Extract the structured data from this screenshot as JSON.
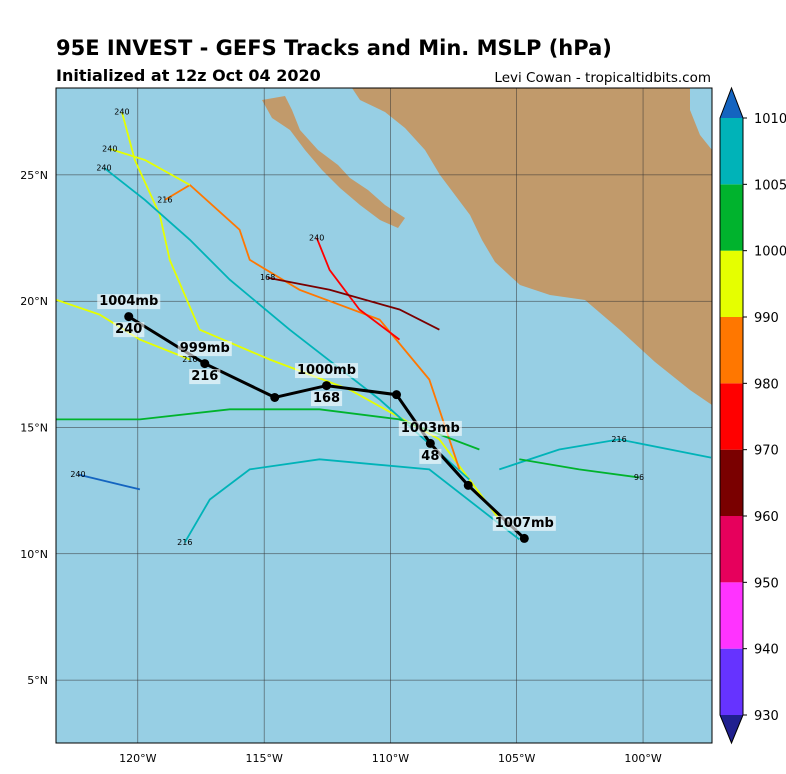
{
  "header": {
    "title": "95E INVEST - GEFS Tracks and Min. MSLP (hPa)",
    "subtitle": "Initialized at 12z Oct 04 2020",
    "credit": "Levi Cowan - tropicaltidbits.com"
  },
  "map": {
    "lon_range": [
      -123.24,
      -97.27
    ],
    "lat_range": [
      2.51,
      28.44
    ],
    "lon_ticks": [
      {
        "value": -120,
        "label": "120°W"
      },
      {
        "value": -115,
        "label": "115°W"
      },
      {
        "value": -110,
        "label": "110°W"
      },
      {
        "value": -105,
        "label": "105°W"
      },
      {
        "value": -100,
        "label": "100°W"
      }
    ],
    "lat_ticks": [
      {
        "value": 5,
        "label": "5°N"
      },
      {
        "value": 10,
        "label": "10°N"
      },
      {
        "value": 15,
        "label": "15°N"
      },
      {
        "value": 20,
        "label": "20°N"
      },
      {
        "value": 25,
        "label": "25°N"
      }
    ],
    "sea_color": "#97cfe4",
    "land_color": "#c19a6b"
  },
  "colorbar": {
    "levels": [
      930,
      940,
      950,
      960,
      970,
      980,
      990,
      1000,
      1005,
      1010
    ],
    "colors": [
      "#6633ff",
      "#ff33ff",
      "#e6005c",
      "#7a0000",
      "#ff0000",
      "#ff7700",
      "#e5ff00",
      "#00b32d",
      "#00b3b8"
    ],
    "under_color": "#20208f",
    "over_color": "#1464c0"
  },
  "ensemble_tracks": [
    {
      "color": "#e5ff00",
      "points": [
        {
          "lon": -105.69,
          "lat": 11.36
        },
        {
          "lon": -108.06,
          "lat": 14.53
        },
        {
          "lon": -111.62,
          "lat": 16.5
        },
        {
          "lon": -114.78,
          "lat": 17.69
        },
        {
          "lon": -117.55,
          "lat": 18.87
        },
        {
          "lon": -118.74,
          "lat": 21.64
        },
        {
          "lon": -119.13,
          "lat": 23.42
        },
        {
          "lon": -120.12,
          "lat": 25.59
        },
        {
          "lon": -120.63,
          "lat": 27.49,
          "hour": 240
        }
      ]
    },
    {
      "color": "#00b3b8",
      "points": [
        {
          "lon": -106.88,
          "lat": 12.94
        },
        {
          "lon": -110.43,
          "lat": 16.11
        },
        {
          "lon": -113.99,
          "lat": 18.87
        },
        {
          "lon": -116.36,
          "lat": 20.85
        },
        {
          "lon": -117.94,
          "lat": 22.43
        },
        {
          "lon": -119.72,
          "lat": 24.01
        },
        {
          "lon": -121.34,
          "lat": 25.28,
          "hour": 240
        }
      ]
    },
    {
      "color": "#ff7700",
      "points": [
        {
          "lon": -107.27,
          "lat": 13.34
        },
        {
          "lon": -108.46,
          "lat": 16.9
        },
        {
          "lon": -110.43,
          "lat": 19.27
        },
        {
          "lon": -113.6,
          "lat": 20.45
        },
        {
          "lon": -115.57,
          "lat": 21.64
        },
        {
          "lon": -115.97,
          "lat": 22.83
        },
        {
          "lon": -117.94,
          "lat": 24.6
        },
        {
          "lon": -118.93,
          "lat": 24.01,
          "hour": 216
        }
      ]
    },
    {
      "color": "#e5ff00",
      "points": [
        {
          "lon": -117.94,
          "lat": 24.6
        },
        {
          "lon": -119.72,
          "lat": 25.59
        },
        {
          "lon": -121.11,
          "lat": 26.03,
          "hour": 240
        }
      ]
    },
    {
      "color": "#ff0000",
      "points": [
        {
          "lon": -109.64,
          "lat": 18.48
        },
        {
          "lon": -111.23,
          "lat": 19.67
        },
        {
          "lon": -112.41,
          "lat": 21.24
        },
        {
          "lon": -112.92,
          "lat": 22.51,
          "hour": 240
        }
      ]
    },
    {
      "color": "#7a0000",
      "points": [
        {
          "lon": -108.06,
          "lat": 18.87
        },
        {
          "lon": -109.64,
          "lat": 19.67
        },
        {
          "lon": -112.41,
          "lat": 20.45
        },
        {
          "lon": -114.86,
          "lat": 20.93,
          "hour": 168
        }
      ]
    },
    {
      "color": "#00b3b8",
      "points": [
        {
          "lon": -104.9,
          "lat": 10.57
        },
        {
          "lon": -108.46,
          "lat": 13.34
        },
        {
          "lon": -112.81,
          "lat": 13.74
        },
        {
          "lon": -115.57,
          "lat": 13.34
        },
        {
          "lon": -117.15,
          "lat": 12.15
        },
        {
          "lon": -118.14,
          "lat": 10.45,
          "hour": 216
        }
      ]
    },
    {
      "color": "#e5ff00",
      "points": [
        {
          "lon": -123.24,
          "lat": 20.06
        },
        {
          "lon": -121.51,
          "lat": 19.47
        },
        {
          "lon": -119.92,
          "lat": 18.48
        },
        {
          "lon": -117.94,
          "lat": 17.69,
          "hour": 216
        }
      ]
    },
    {
      "color": "#00b3b8",
      "points": [
        {
          "lon": -105.69,
          "lat": 13.34
        },
        {
          "lon": -103.32,
          "lat": 14.13
        },
        {
          "lon": -100.95,
          "lat": 14.53,
          "hour": 216
        },
        {
          "lon": -97.31,
          "lat": 13.81
        }
      ]
    },
    {
      "color": "#00b32d",
      "points": [
        {
          "lon": -104.9,
          "lat": 13.74
        },
        {
          "lon": -102.53,
          "lat": 13.34
        },
        {
          "lon": -100.16,
          "lat": 13.02,
          "hour": 96
        }
      ]
    },
    {
      "color": "#1464c0",
      "points": [
        {
          "lon": -119.92,
          "lat": 12.55
        },
        {
          "lon": -122.37,
          "lat": 13.14,
          "hour": 240
        }
      ]
    },
    {
      "color": "#00b32d",
      "points": [
        {
          "lon": -106.48,
          "lat": 14.13
        },
        {
          "lon": -109.64,
          "lat": 15.32
        },
        {
          "lon": -112.81,
          "lat": 15.72
        },
        {
          "lon": -116.36,
          "lat": 15.72
        },
        {
          "lon": -119.92,
          "lat": 15.32
        },
        {
          "lon": -123.24,
          "lat": 15.32
        }
      ]
    }
  ],
  "mean_track": {
    "color": "#000000",
    "points": [
      {
        "lon": -104.7,
        "lat": 10.61,
        "mslp": "1007mb"
      },
      {
        "lon": -106.92,
        "lat": 12.71
      },
      {
        "lon": -108.42,
        "lat": 14.37,
        "hour": 48,
        "mslp": "1003mb"
      },
      {
        "lon": -109.76,
        "lat": 16.3
      },
      {
        "lon": -112.53,
        "lat": 16.66,
        "hour": 168,
        "mslp": "1000mb"
      },
      {
        "lon": -114.58,
        "lat": 16.19
      },
      {
        "lon": -117.35,
        "lat": 17.53,
        "hour": 216,
        "mslp": "999mb"
      },
      {
        "lon": -120.36,
        "lat": 19.39,
        "hour": 240,
        "mslp": "1004mb"
      }
    ]
  }
}
